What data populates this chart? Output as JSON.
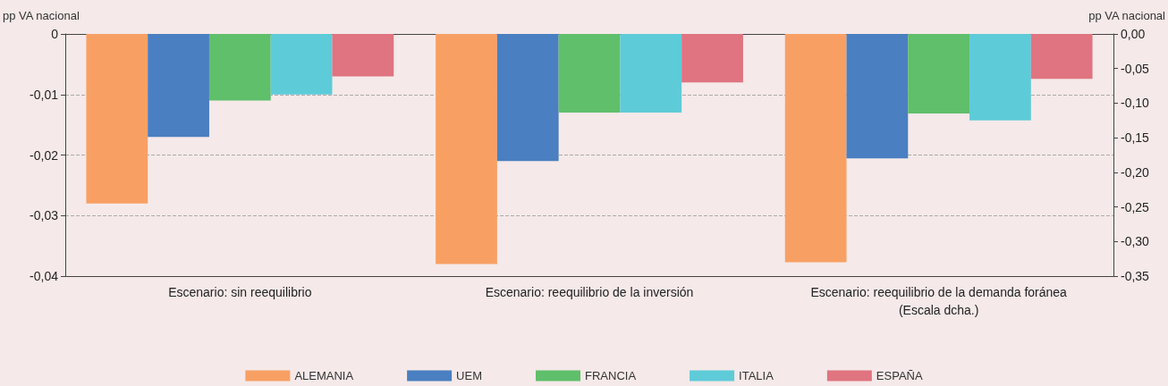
{
  "chart_data": {
    "type": "bar",
    "categories": [
      "Escenario: sin reequilibrio",
      "Escenario: reequilibrio de la inversión",
      "Escenario: reequilibrio de la demanda foránea\n(Escala dcha.)"
    ],
    "ylabel": "pp VA nacional",
    "y2label": "pp VA nacional",
    "ylim": [
      -0.04,
      0
    ],
    "yticks": [
      {
        "value": -0.04,
        "label": "-0,04"
      },
      {
        "value": -0.03,
        "label": "-0,03"
      },
      {
        "value": -0.02,
        "label": "-0,02"
      },
      {
        "value": -0.01,
        "label": "-0,01"
      },
      {
        "value": 0,
        "label": "0"
      }
    ],
    "y2lim": [
      -0.35,
      0
    ],
    "y2ticks": [
      {
        "value": -0.35,
        "label": "-0,35"
      },
      {
        "value": -0.3,
        "label": "-0,30"
      },
      {
        "value": -0.25,
        "label": "-0,25"
      },
      {
        "value": -0.2,
        "label": "-0,20"
      },
      {
        "value": -0.15,
        "label": "-0,15"
      },
      {
        "value": -0.1,
        "label": "-0,10"
      },
      {
        "value": -0.05,
        "label": "-0,05"
      },
      {
        "value": 0,
        "label": "0,00"
      }
    ],
    "series": [
      {
        "name": "ALEMANIA",
        "color": "#f8a064",
        "values": [
          -0.028,
          -0.038,
          null
        ]
      },
      {
        "name": "UEM",
        "color": "#4a7fc1",
        "values": [
          -0.017,
          -0.021,
          null
        ]
      },
      {
        "name": "FRANCIA",
        "color": "#5fbf6b",
        "values": [
          -0.011,
          -0.013,
          null
        ]
      },
      {
        "name": "ITALIA",
        "color": "#5ecbd8",
        "values": [
          -0.01,
          -0.013,
          null
        ]
      },
      {
        "name": "ESPAÑA",
        "color": "#e07480",
        "values": [
          -0.007,
          -0.008,
          null
        ]
      },
      {
        "color": "#f8a064",
        "axis": "y2",
        "values": [
          null,
          null,
          -0.33
        ]
      },
      {
        "color": "#4a7fc1",
        "axis": "y2",
        "values": [
          null,
          null,
          -0.18
        ]
      },
      {
        "color": "#5fbf6b",
        "axis": "y2",
        "values": [
          null,
          null,
          -0.115
        ]
      },
      {
        "color": "#5ecbd8",
        "axis": "y2",
        "values": [
          null,
          null,
          -0.125
        ]
      },
      {
        "color": "#e07480",
        "axis": "y2",
        "values": [
          null,
          null,
          -0.065
        ]
      }
    ],
    "grid": "y",
    "legend": "bottom"
  }
}
